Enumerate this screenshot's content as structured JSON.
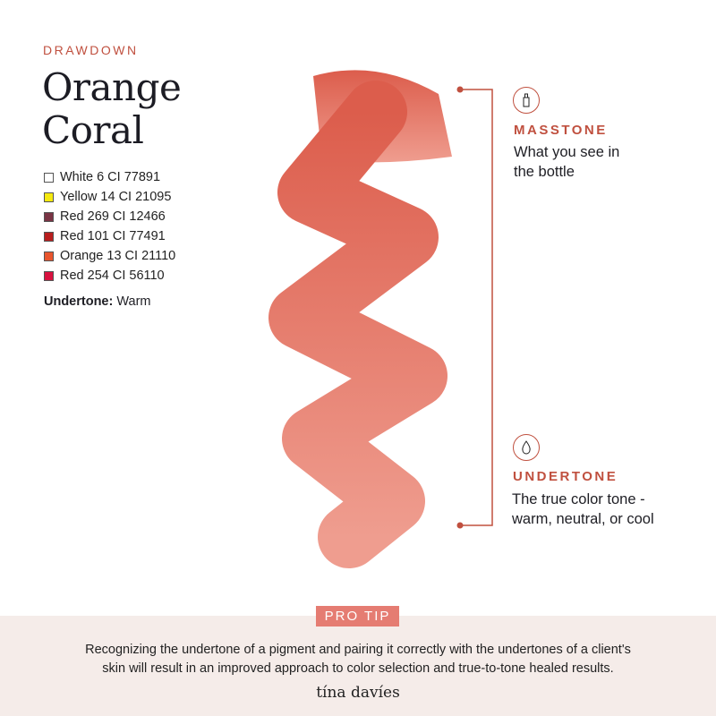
{
  "header": {
    "eyebrow": "DRAWDOWN",
    "title_line1": "Orange",
    "title_line2": "Coral"
  },
  "pigments": [
    {
      "label": "White 6 CI 77891",
      "color": "#ffffff"
    },
    {
      "label": "Yellow 14 CI 21095",
      "color": "#f5e90f"
    },
    {
      "label": "Red 269 CI 12466",
      "color": "#7a3444"
    },
    {
      "label": "Red 101 CI 77491",
      "color": "#b81e1e"
    },
    {
      "label": "Orange 13 CI 21110",
      "color": "#e8552e"
    },
    {
      "label": "Red 254 CI 56110",
      "color": "#d8123f"
    }
  ],
  "undertone": {
    "label": "Undertone:",
    "value": "Warm"
  },
  "swatch": {
    "top_color": "#dc5d4c",
    "bottom_color": "#ef9d8f"
  },
  "masstone": {
    "icon": "bottle-icon",
    "label": "MASSTONE",
    "line1": "What you see in",
    "line2": "the bottle"
  },
  "undertone_info": {
    "icon": "droplet-icon",
    "label": "UNDERTONE",
    "line1": "The true color tone -",
    "line2": "warm, neutral, or cool"
  },
  "accent": "#c0503f",
  "footer": {
    "badge": "PRO TIP",
    "tip_line1": "Recognizing the undertone of a pigment and pairing it correctly with the undertones of a client's",
    "tip_line2": "skin will result in an improved approach to color selection and true-to-tone healed results.",
    "brand": "tína davíes"
  }
}
